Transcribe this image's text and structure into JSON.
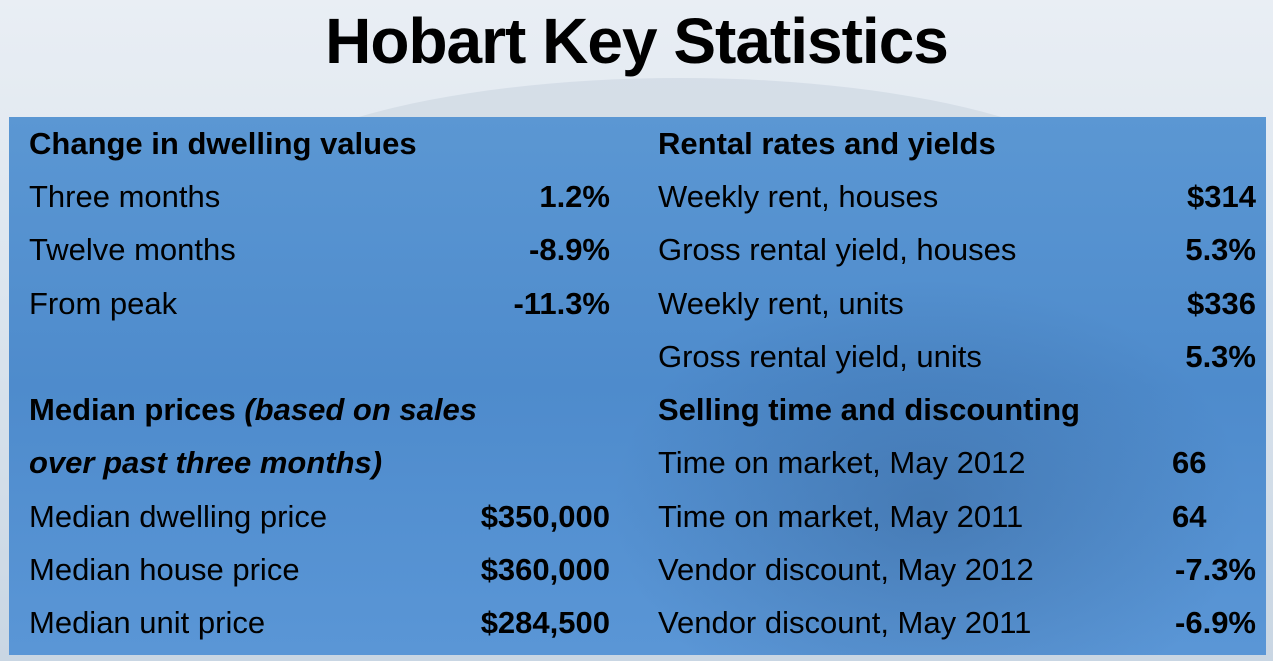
{
  "title": "Hobart Key Statistics",
  "left": {
    "change": {
      "heading": "Change in dwelling values",
      "rows": [
        {
          "label": "Three months",
          "value": "1.2%"
        },
        {
          "label": "Twelve months",
          "value": "-8.9%"
        },
        {
          "label": "From peak",
          "value": "-11.3%"
        }
      ]
    },
    "median": {
      "heading_main": "Median prices ",
      "heading_italic_1": "(based on sales",
      "heading_italic_2": "over past three months)",
      "rows": [
        {
          "label": "Median dwelling price",
          "value": "$350,000"
        },
        {
          "label": "Median house price",
          "value": "$360,000"
        },
        {
          "label": "Median unit price",
          "value": "$284,500"
        }
      ]
    }
  },
  "right": {
    "rental": {
      "heading": "Rental rates and yields",
      "rows": [
        {
          "label": "Weekly rent, houses",
          "value": "$314"
        },
        {
          "label": "Gross rental yield, houses",
          "value": "5.3%"
        },
        {
          "label": "Weekly rent, units",
          "value": "$336"
        },
        {
          "label": "Gross rental yield, units",
          "value": "5.3%"
        }
      ]
    },
    "selling": {
      "heading": "Selling time and discounting",
      "rows": [
        {
          "label": "Time on market, May 2012",
          "value": "66"
        },
        {
          "label": "Time on market, May 2011",
          "value": "64"
        },
        {
          "label": "Vendor discount, May 2012",
          "value": "-7.3%"
        },
        {
          "label": "Vendor discount, May 2011",
          "value": "-6.9%"
        }
      ]
    }
  }
}
